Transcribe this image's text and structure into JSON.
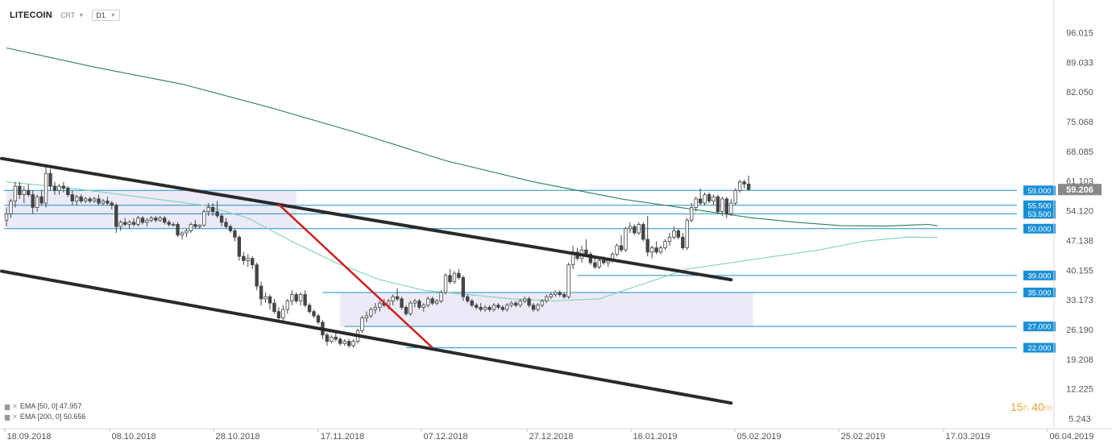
{
  "header": {
    "symbol": "LITECOIN",
    "source": "CRT",
    "timeframe": "D1"
  },
  "legend": {
    "ema50_label": "EMA [50, 0] 47.957",
    "ema200_label": "EMA [200, 0] 50.656"
  },
  "timer": {
    "hours": "15",
    "hours_unit": "h",
    "minutes": "40",
    "minutes_unit": "m"
  },
  "colors": {
    "candle_up": "#ffffff",
    "candle_down": "#444444",
    "ema50": "#7fd3b0",
    "ema200": "#2e7d5b",
    "channel": "#2a2a2a",
    "trend": "#cc1f1f",
    "level_line": "#1a8fd6",
    "level_label_bg": "#1a8fd6",
    "price_label_bg": "#888888",
    "zone": "#e9e6f6"
  },
  "chart_data": {
    "type": "candlestick",
    "title": "LITECOIN",
    "ylim": [
      5.243,
      101.5
    ],
    "y_ticks": [
      "96.015",
      "89.033",
      "82.050",
      "75.068",
      "68.085",
      "61.103",
      "54.120",
      "47.138",
      "40.155",
      "33.173",
      "26.190",
      "19.208",
      "12.225",
      "5.243"
    ],
    "x_ticks": [
      "18.09.2018",
      "08.10.2018",
      "28.10.2018",
      "17.11.2018",
      "07.12.2018",
      "27.12.2018",
      "16.01.2019",
      "05.02.2019",
      "25.02.2019",
      "17.03.2019",
      "06.04.2019"
    ],
    "last_price": "59.206",
    "levels": [
      {
        "value": 59.0,
        "label": "59.000"
      },
      {
        "value": 55.5,
        "label": "55.500"
      },
      {
        "value": 53.5,
        "label": "53.500"
      },
      {
        "value": 50.0,
        "label": "50.000"
      },
      {
        "value": 39.0,
        "label": "39.000"
      },
      {
        "value": 35.0,
        "label": "35.000"
      },
      {
        "value": 27.0,
        "label": "27.000"
      },
      {
        "value": 22.0,
        "label": "22.000"
      }
    ],
    "candles": [
      {
        "o": 52.0,
        "h": 55.0,
        "l": 50.5,
        "c": 53.5
      },
      {
        "o": 53.5,
        "h": 57.0,
        "l": 52.5,
        "c": 56.5
      },
      {
        "o": 56.5,
        "h": 61.0,
        "l": 55.0,
        "c": 60.0
      },
      {
        "o": 60.0,
        "h": 61.0,
        "l": 57.0,
        "c": 58.0
      },
      {
        "o": 58.0,
        "h": 60.0,
        "l": 56.0,
        "c": 59.0
      },
      {
        "o": 59.0,
        "h": 60.5,
        "l": 57.5,
        "c": 58.0
      },
      {
        "o": 58.0,
        "h": 59.0,
        "l": 53.5,
        "c": 55.0
      },
      {
        "o": 55.0,
        "h": 58.0,
        "l": 54.0,
        "c": 57.5
      },
      {
        "o": 57.5,
        "h": 59.0,
        "l": 55.5,
        "c": 56.0
      },
      {
        "o": 56.0,
        "h": 64.5,
        "l": 55.0,
        "c": 63.0
      },
      {
        "o": 63.0,
        "h": 64.0,
        "l": 59.0,
        "c": 60.0
      },
      {
        "o": 60.0,
        "h": 61.0,
        "l": 58.0,
        "c": 59.0
      },
      {
        "o": 59.0,
        "h": 60.5,
        "l": 58.0,
        "c": 60.0
      },
      {
        "o": 60.0,
        "h": 61.0,
        "l": 58.5,
        "c": 59.5
      },
      {
        "o": 59.5,
        "h": 60.0,
        "l": 57.5,
        "c": 58.0
      },
      {
        "o": 58.0,
        "h": 59.0,
        "l": 55.5,
        "c": 56.5
      },
      {
        "o": 56.5,
        "h": 58.0,
        "l": 55.5,
        "c": 57.5
      },
      {
        "o": 57.5,
        "h": 58.0,
        "l": 56.0,
        "c": 56.5
      },
      {
        "o": 56.5,
        "h": 57.5,
        "l": 56.0,
        "c": 57.0
      },
      {
        "o": 57.0,
        "h": 57.5,
        "l": 56.0,
        "c": 56.5
      },
      {
        "o": 56.5,
        "h": 57.5,
        "l": 56.0,
        "c": 57.0
      },
      {
        "o": 57.0,
        "h": 58.0,
        "l": 55.5,
        "c": 56.0
      },
      {
        "o": 56.0,
        "h": 57.0,
        "l": 55.5,
        "c": 56.5
      },
      {
        "o": 56.5,
        "h": 57.5,
        "l": 55.5,
        "c": 56.0
      },
      {
        "o": 56.0,
        "h": 56.5,
        "l": 54.5,
        "c": 55.5
      },
      {
        "o": 55.5,
        "h": 56.0,
        "l": 49.0,
        "c": 50.5
      },
      {
        "o": 50.5,
        "h": 52.0,
        "l": 49.5,
        "c": 51.5
      },
      {
        "o": 51.5,
        "h": 52.5,
        "l": 50.5,
        "c": 51.0
      },
      {
        "o": 51.0,
        "h": 52.0,
        "l": 50.0,
        "c": 51.5
      },
      {
        "o": 51.5,
        "h": 52.5,
        "l": 50.5,
        "c": 51.0
      },
      {
        "o": 51.0,
        "h": 53.0,
        "l": 50.5,
        "c": 52.5
      },
      {
        "o": 52.5,
        "h": 53.0,
        "l": 51.0,
        "c": 51.5
      },
      {
        "o": 51.5,
        "h": 52.5,
        "l": 50.5,
        "c": 52.0
      },
      {
        "o": 52.0,
        "h": 53.0,
        "l": 51.5,
        "c": 52.5
      },
      {
        "o": 52.5,
        "h": 53.0,
        "l": 51.5,
        "c": 52.0
      },
      {
        "o": 52.0,
        "h": 53.0,
        "l": 51.5,
        "c": 52.5
      },
      {
        "o": 52.5,
        "h": 53.0,
        "l": 51.0,
        "c": 51.5
      },
      {
        "o": 51.5,
        "h": 52.0,
        "l": 50.5,
        "c": 51.0
      },
      {
        "o": 51.0,
        "h": 51.5,
        "l": 50.5,
        "c": 51.0
      },
      {
        "o": 51.0,
        "h": 51.5,
        "l": 48.0,
        "c": 48.5
      },
      {
        "o": 48.5,
        "h": 49.5,
        "l": 47.5,
        "c": 49.0
      },
      {
        "o": 49.0,
        "h": 50.0,
        "l": 48.0,
        "c": 49.5
      },
      {
        "o": 49.5,
        "h": 51.5,
        "l": 49.0,
        "c": 51.0
      },
      {
        "o": 51.0,
        "h": 52.0,
        "l": 50.0,
        "c": 50.5
      },
      {
        "o": 50.5,
        "h": 51.0,
        "l": 50.0,
        "c": 50.8
      },
      {
        "o": 50.8,
        "h": 54.5,
        "l": 50.5,
        "c": 54.0
      },
      {
        "o": 54.0,
        "h": 56.0,
        "l": 53.0,
        "c": 55.0
      },
      {
        "o": 55.0,
        "h": 56.0,
        "l": 53.0,
        "c": 54.0
      },
      {
        "o": 54.0,
        "h": 56.5,
        "l": 52.5,
        "c": 53.0
      },
      {
        "o": 53.0,
        "h": 53.5,
        "l": 50.5,
        "c": 51.5
      },
      {
        "o": 51.5,
        "h": 52.5,
        "l": 50.0,
        "c": 50.5
      },
      {
        "o": 50.5,
        "h": 51.0,
        "l": 49.0,
        "c": 49.5
      },
      {
        "o": 49.5,
        "h": 50.0,
        "l": 47.0,
        "c": 48.0
      },
      {
        "o": 48.0,
        "h": 48.5,
        "l": 42.5,
        "c": 43.5
      },
      {
        "o": 43.5,
        "h": 44.5,
        "l": 41.5,
        "c": 42.5
      },
      {
        "o": 42.5,
        "h": 44.0,
        "l": 41.0,
        "c": 43.0
      },
      {
        "o": 43.0,
        "h": 43.5,
        "l": 40.5,
        "c": 41.5
      },
      {
        "o": 41.5,
        "h": 42.0,
        "l": 35.5,
        "c": 36.5
      },
      {
        "o": 36.5,
        "h": 37.5,
        "l": 32.0,
        "c": 33.5
      },
      {
        "o": 33.5,
        "h": 35.0,
        "l": 32.5,
        "c": 34.0
      },
      {
        "o": 34.0,
        "h": 34.5,
        "l": 31.0,
        "c": 32.5
      },
      {
        "o": 32.5,
        "h": 33.5,
        "l": 30.0,
        "c": 30.5
      },
      {
        "o": 30.5,
        "h": 31.5,
        "l": 28.0,
        "c": 29.0
      },
      {
        "o": 29.0,
        "h": 32.0,
        "l": 28.0,
        "c": 31.0
      },
      {
        "o": 31.0,
        "h": 33.5,
        "l": 30.0,
        "c": 33.0
      },
      {
        "o": 33.0,
        "h": 35.5,
        "l": 32.0,
        "c": 34.5
      },
      {
        "o": 34.5,
        "h": 35.0,
        "l": 32.5,
        "c": 33.0
      },
      {
        "o": 33.0,
        "h": 35.0,
        "l": 32.0,
        "c": 34.5
      },
      {
        "o": 34.5,
        "h": 35.5,
        "l": 31.5,
        "c": 32.0
      },
      {
        "o": 32.0,
        "h": 32.5,
        "l": 30.0,
        "c": 30.5
      },
      {
        "o": 30.5,
        "h": 31.0,
        "l": 29.0,
        "c": 29.5
      },
      {
        "o": 29.5,
        "h": 30.0,
        "l": 27.5,
        "c": 28.0
      },
      {
        "o": 28.0,
        "h": 28.5,
        "l": 24.0,
        "c": 25.0
      },
      {
        "o": 25.0,
        "h": 25.5,
        "l": 22.5,
        "c": 23.5
      },
      {
        "o": 23.5,
        "h": 25.0,
        "l": 23.0,
        "c": 24.5
      },
      {
        "o": 24.5,
        "h": 25.5,
        "l": 23.5,
        "c": 24.0
      },
      {
        "o": 24.0,
        "h": 24.5,
        "l": 22.5,
        "c": 23.0
      },
      {
        "o": 23.0,
        "h": 24.0,
        "l": 22.5,
        "c": 23.5
      },
      {
        "o": 23.5,
        "h": 24.0,
        "l": 22.0,
        "c": 22.5
      },
      {
        "o": 22.5,
        "h": 24.0,
        "l": 22.0,
        "c": 23.5
      },
      {
        "o": 23.5,
        "h": 26.5,
        "l": 23.0,
        "c": 26.0
      },
      {
        "o": 26.0,
        "h": 29.5,
        "l": 25.5,
        "c": 29.0
      },
      {
        "o": 29.0,
        "h": 30.5,
        "l": 28.0,
        "c": 29.5
      },
      {
        "o": 29.5,
        "h": 31.5,
        "l": 29.0,
        "c": 31.0
      },
      {
        "o": 31.0,
        "h": 32.5,
        "l": 30.0,
        "c": 31.5
      },
      {
        "o": 31.5,
        "h": 33.0,
        "l": 30.5,
        "c": 32.5
      },
      {
        "o": 32.5,
        "h": 33.5,
        "l": 31.5,
        "c": 32.0
      },
      {
        "o": 32.0,
        "h": 33.5,
        "l": 31.0,
        "c": 33.0
      },
      {
        "o": 33.0,
        "h": 34.5,
        "l": 32.0,
        "c": 34.0
      },
      {
        "o": 34.0,
        "h": 36.0,
        "l": 33.0,
        "c": 33.5
      },
      {
        "o": 33.5,
        "h": 34.0,
        "l": 31.0,
        "c": 31.5
      },
      {
        "o": 31.5,
        "h": 32.0,
        "l": 29.5,
        "c": 30.0
      },
      {
        "o": 30.0,
        "h": 33.0,
        "l": 29.5,
        "c": 32.5
      },
      {
        "o": 32.5,
        "h": 33.5,
        "l": 31.5,
        "c": 33.0
      },
      {
        "o": 33.0,
        "h": 33.5,
        "l": 31.0,
        "c": 31.5
      },
      {
        "o": 31.5,
        "h": 32.5,
        "l": 30.5,
        "c": 32.0
      },
      {
        "o": 32.0,
        "h": 34.0,
        "l": 31.5,
        "c": 33.5
      },
      {
        "o": 33.5,
        "h": 34.0,
        "l": 32.0,
        "c": 32.5
      },
      {
        "o": 32.5,
        "h": 33.5,
        "l": 32.0,
        "c": 33.0
      },
      {
        "o": 33.0,
        "h": 35.5,
        "l": 32.5,
        "c": 35.0
      },
      {
        "o": 35.0,
        "h": 39.5,
        "l": 34.5,
        "c": 39.0
      },
      {
        "o": 39.0,
        "h": 40.5,
        "l": 37.0,
        "c": 37.5
      },
      {
        "o": 37.5,
        "h": 40.0,
        "l": 37.0,
        "c": 39.5
      },
      {
        "o": 39.5,
        "h": 40.5,
        "l": 38.0,
        "c": 38.5
      },
      {
        "o": 38.5,
        "h": 39.0,
        "l": 33.0,
        "c": 34.0
      },
      {
        "o": 34.0,
        "h": 34.5,
        "l": 32.5,
        "c": 33.0
      },
      {
        "o": 33.0,
        "h": 33.5,
        "l": 31.5,
        "c": 32.0
      },
      {
        "o": 32.0,
        "h": 32.5,
        "l": 31.0,
        "c": 31.5
      },
      {
        "o": 31.5,
        "h": 32.5,
        "l": 30.5,
        "c": 31.0
      },
      {
        "o": 31.0,
        "h": 32.0,
        "l": 30.5,
        "c": 31.5
      },
      {
        "o": 31.5,
        "h": 32.0,
        "l": 30.5,
        "c": 31.0
      },
      {
        "o": 31.0,
        "h": 32.5,
        "l": 30.5,
        "c": 32.0
      },
      {
        "o": 32.0,
        "h": 32.5,
        "l": 31.0,
        "c": 31.5
      },
      {
        "o": 31.5,
        "h": 32.0,
        "l": 30.5,
        "c": 31.0
      },
      {
        "o": 31.0,
        "h": 32.5,
        "l": 30.5,
        "c": 32.0
      },
      {
        "o": 32.0,
        "h": 33.0,
        "l": 31.5,
        "c": 32.5
      },
      {
        "o": 32.5,
        "h": 33.0,
        "l": 31.5,
        "c": 32.0
      },
      {
        "o": 32.0,
        "h": 33.5,
        "l": 31.5,
        "c": 33.0
      },
      {
        "o": 33.0,
        "h": 34.0,
        "l": 32.5,
        "c": 33.5
      },
      {
        "o": 33.5,
        "h": 34.0,
        "l": 31.5,
        "c": 32.0
      },
      {
        "o": 32.0,
        "h": 32.5,
        "l": 30.5,
        "c": 31.0
      },
      {
        "o": 31.0,
        "h": 32.5,
        "l": 30.5,
        "c": 32.0
      },
      {
        "o": 32.0,
        "h": 33.5,
        "l": 31.5,
        "c": 33.0
      },
      {
        "o": 33.0,
        "h": 34.5,
        "l": 32.5,
        "c": 34.0
      },
      {
        "o": 34.0,
        "h": 35.0,
        "l": 33.5,
        "c": 34.5
      },
      {
        "o": 34.5,
        "h": 35.5,
        "l": 34.0,
        "c": 35.0
      },
      {
        "o": 35.0,
        "h": 35.5,
        "l": 34.0,
        "c": 34.5
      },
      {
        "o": 34.5,
        "h": 35.0,
        "l": 33.5,
        "c": 34.0
      },
      {
        "o": 34.0,
        "h": 42.0,
        "l": 33.5,
        "c": 41.5
      },
      {
        "o": 41.5,
        "h": 46.0,
        "l": 40.5,
        "c": 44.5
      },
      {
        "o": 44.5,
        "h": 45.5,
        "l": 42.5,
        "c": 43.0
      },
      {
        "o": 43.0,
        "h": 46.0,
        "l": 42.0,
        "c": 45.0
      },
      {
        "o": 45.0,
        "h": 47.5,
        "l": 43.5,
        "c": 44.0
      },
      {
        "o": 44.0,
        "h": 44.5,
        "l": 41.5,
        "c": 42.0
      },
      {
        "o": 42.0,
        "h": 43.0,
        "l": 40.5,
        "c": 41.0
      },
      {
        "o": 41.0,
        "h": 43.0,
        "l": 40.5,
        "c": 42.5
      },
      {
        "o": 42.5,
        "h": 43.5,
        "l": 41.5,
        "c": 42.0
      },
      {
        "o": 42.0,
        "h": 43.0,
        "l": 41.0,
        "c": 42.5
      },
      {
        "o": 42.5,
        "h": 44.5,
        "l": 42.0,
        "c": 44.0
      },
      {
        "o": 44.0,
        "h": 46.5,
        "l": 43.5,
        "c": 46.0
      },
      {
        "o": 46.0,
        "h": 48.5,
        "l": 44.5,
        "c": 45.0
      },
      {
        "o": 45.0,
        "h": 50.5,
        "l": 44.5,
        "c": 50.0
      },
      {
        "o": 50.0,
        "h": 51.5,
        "l": 49.0,
        "c": 50.5
      },
      {
        "o": 50.5,
        "h": 51.0,
        "l": 48.5,
        "c": 49.0
      },
      {
        "o": 49.0,
        "h": 51.5,
        "l": 48.5,
        "c": 51.0
      },
      {
        "o": 51.0,
        "h": 51.5,
        "l": 47.0,
        "c": 47.5
      },
      {
        "o": 47.5,
        "h": 53.0,
        "l": 43.5,
        "c": 44.5
      },
      {
        "o": 44.5,
        "h": 46.0,
        "l": 43.0,
        "c": 45.5
      },
      {
        "o": 45.5,
        "h": 47.0,
        "l": 44.0,
        "c": 44.5
      },
      {
        "o": 44.5,
        "h": 46.0,
        "l": 44.0,
        "c": 45.5
      },
      {
        "o": 45.5,
        "h": 47.5,
        "l": 45.0,
        "c": 47.0
      },
      {
        "o": 47.0,
        "h": 49.0,
        "l": 46.0,
        "c": 48.0
      },
      {
        "o": 48.0,
        "h": 50.5,
        "l": 47.5,
        "c": 49.5
      },
      {
        "o": 49.5,
        "h": 50.0,
        "l": 47.5,
        "c": 48.0
      },
      {
        "o": 48.0,
        "h": 49.0,
        "l": 45.0,
        "c": 45.5
      },
      {
        "o": 45.5,
        "h": 52.5,
        "l": 45.0,
        "c": 52.0
      },
      {
        "o": 52.0,
        "h": 56.0,
        "l": 51.5,
        "c": 55.0
      },
      {
        "o": 55.0,
        "h": 57.5,
        "l": 54.0,
        "c": 57.0
      },
      {
        "o": 57.0,
        "h": 59.5,
        "l": 55.5,
        "c": 56.0
      },
      {
        "o": 56.0,
        "h": 58.5,
        "l": 55.5,
        "c": 58.0
      },
      {
        "o": 58.0,
        "h": 58.5,
        "l": 56.0,
        "c": 56.5
      },
      {
        "o": 56.5,
        "h": 58.0,
        "l": 55.5,
        "c": 57.5
      },
      {
        "o": 57.5,
        "h": 58.0,
        "l": 53.5,
        "c": 54.0
      },
      {
        "o": 54.0,
        "h": 57.5,
        "l": 53.0,
        "c": 57.0
      },
      {
        "o": 57.0,
        "h": 57.5,
        "l": 52.5,
        "c": 53.5
      },
      {
        "o": 53.5,
        "h": 57.0,
        "l": 53.0,
        "c": 56.0
      },
      {
        "o": 56.0,
        "h": 59.5,
        "l": 55.5,
        "c": 59.0
      },
      {
        "o": 59.0,
        "h": 61.5,
        "l": 58.5,
        "c": 61.0
      },
      {
        "o": 61.0,
        "h": 61.5,
        "l": 59.5,
        "c": 60.5
      },
      {
        "o": 60.5,
        "h": 62.5,
        "l": 59.0,
        "c": 59.2
      }
    ],
    "ema200": [
      [
        0,
        92.5
      ],
      [
        20,
        88.0
      ],
      [
        40,
        84.0
      ],
      [
        60,
        78.5
      ],
      [
        80,
        72.5
      ],
      [
        100,
        66.0
      ],
      [
        120,
        61.0
      ],
      [
        140,
        57.0
      ],
      [
        160,
        54.0
      ],
      [
        170,
        52.5
      ],
      [
        175,
        52.0
      ],
      [
        180,
        51.5
      ],
      [
        190,
        50.7
      ],
      [
        200,
        50.6
      ],
      [
        210,
        51.0
      ],
      [
        212,
        50.66
      ]
    ],
    "ema50": [
      [
        0,
        61.0
      ],
      [
        15,
        59.5
      ],
      [
        30,
        57.5
      ],
      [
        45,
        55.5
      ],
      [
        55,
        52.5
      ],
      [
        65,
        47.0
      ],
      [
        75,
        42.0
      ],
      [
        85,
        38.0
      ],
      [
        95,
        35.5
      ],
      [
        105,
        34.5
      ],
      [
        115,
        33.5
      ],
      [
        125,
        33.0
      ],
      [
        135,
        33.5
      ],
      [
        145,
        37.0
      ],
      [
        155,
        40.5
      ],
      [
        165,
        42.0
      ],
      [
        175,
        43.5
      ],
      [
        185,
        45.0
      ],
      [
        195,
        47.0
      ],
      [
        205,
        48.0
      ],
      [
        212,
        47.96
      ]
    ],
    "channel_upper": {
      "from": [
        0,
        66.5
      ],
      "to": [
        165,
        38.0
      ]
    },
    "channel_lower": {
      "from": [
        0,
        40.0
      ],
      "to": [
        165,
        9.0
      ]
    },
    "red_trend": {
      "from": [
        62,
        55.7
      ],
      "to": [
        97,
        22.0
      ]
    },
    "zones": [
      {
        "x0": 0,
        "x1": 66,
        "y0": 50.0,
        "y1": 59.0
      },
      {
        "x0": 76,
        "x1": 170,
        "y0": 27.0,
        "y1": 35.0
      }
    ]
  }
}
